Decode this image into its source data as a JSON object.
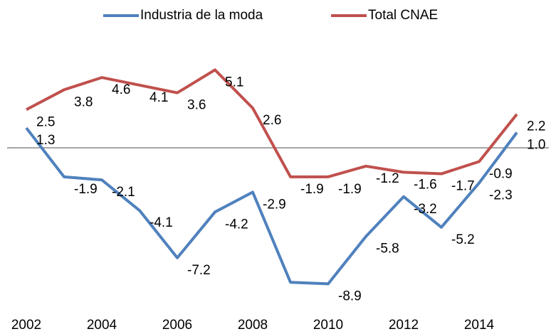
{
  "chart_data": {
    "type": "line",
    "x": [
      2002,
      2003,
      2004,
      2005,
      2006,
      2007,
      2008,
      2009,
      2010,
      2011,
      2012,
      2013,
      2014,
      2015
    ],
    "xlim": [
      2002,
      2015
    ],
    "xticks": [
      2002,
      2004,
      2006,
      2008,
      2010,
      2012,
      2014
    ],
    "ylim": [
      -10,
      6
    ],
    "legend": "top",
    "series": [
      {
        "name": "Industria de la moda",
        "color": "#4f81bd",
        "values": [
          1.3,
          -1.9,
          -2.1,
          -4.1,
          -7.2,
          -4.2,
          -2.9,
          -8.8,
          -8.9,
          -5.8,
          -3.2,
          -5.2,
          -2.3,
          1.0
        ],
        "value_labels": [
          "1.3",
          "-1.9",
          "-2.1",
          "-4.1",
          "-7.2",
          "-4.2",
          "-2.9",
          null,
          "-8.9",
          "-5.8",
          "-3.2",
          "-5.2",
          "-2.3",
          "1.0"
        ]
      },
      {
        "name": "Total CNAE",
        "color": "#c0504d",
        "values": [
          2.5,
          3.8,
          4.6,
          4.1,
          3.6,
          5.1,
          2.6,
          -1.9,
          -1.9,
          -1.2,
          -1.6,
          -1.7,
          -0.9,
          2.2
        ],
        "value_labels": [
          "2.5",
          "3.8",
          "4.6",
          "4.1",
          "3.6",
          "5.1",
          "2.6",
          "-1.9",
          "-1.9",
          "-1.2",
          "-1.6",
          "-1.7",
          "-0.9",
          "2.2"
        ]
      }
    ]
  }
}
